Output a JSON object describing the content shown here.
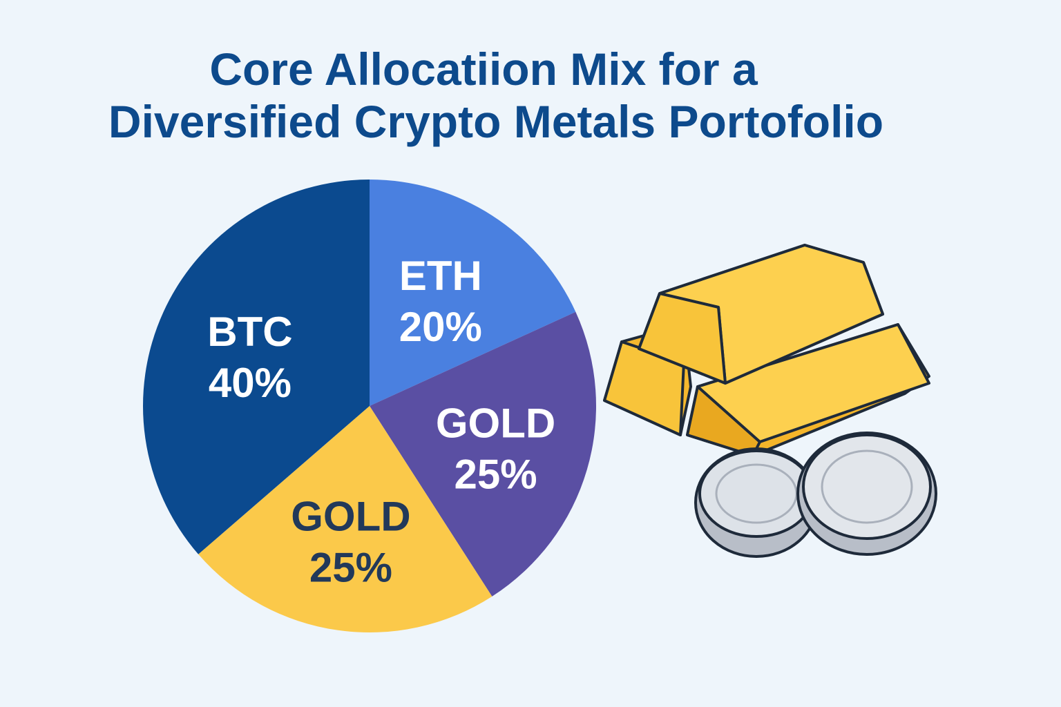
{
  "chart_data": {
    "type": "pie",
    "title_lines": [
      "Core Allocatiion Mix for a",
      "Diversified Crypto Metals Portofolio"
    ],
    "slices": [
      {
        "label": "ETH",
        "value": 20,
        "value_label": "20%",
        "color": "#4a80e0",
        "text_color": "#ffffff"
      },
      {
        "label": "GOLD",
        "value": 25,
        "value_label": "25%",
        "color": "#5a4fa3",
        "text_color": "#ffffff"
      },
      {
        "label": "GOLD",
        "value": 25,
        "value_label": "25%",
        "color": "#fbc94a",
        "text_color": "#22395a"
      },
      {
        "label": "BTC",
        "value": 40,
        "value_label": "40%",
        "color": "#0b4a8f",
        "text_color": "#ffffff"
      }
    ],
    "legend": "none",
    "decoration": [
      "gold-bars",
      "silver-coins"
    ]
  }
}
